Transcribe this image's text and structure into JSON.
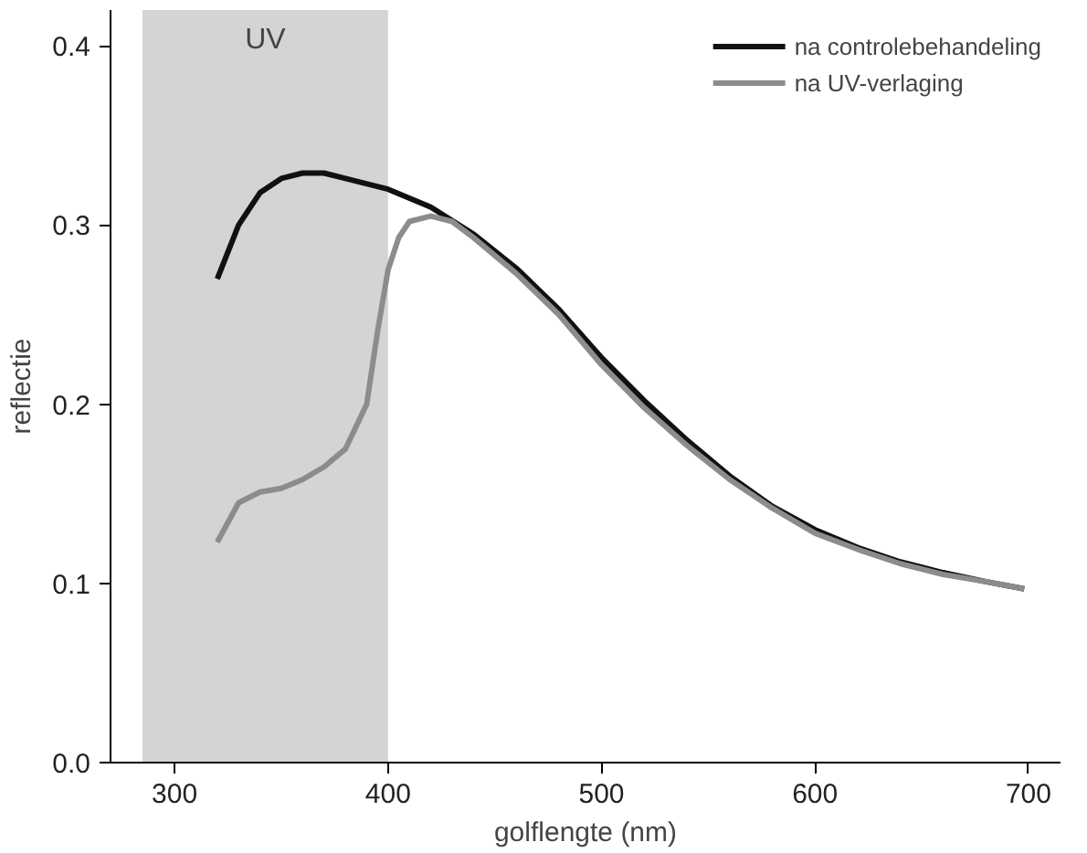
{
  "chart_data": {
    "type": "line",
    "xlabel": "golflengte (nm)",
    "ylabel": "reflectie",
    "xlim": [
      270,
      715
    ],
    "ylim": [
      0,
      0.42
    ],
    "xticks": [
      300,
      400,
      500,
      600,
      700
    ],
    "yticks": [
      {
        "value": 0,
        "label": "0.0"
      },
      0.1,
      0.2,
      0.3,
      0.4
    ],
    "grid": false,
    "legend": "top right",
    "marker": "none",
    "line_style": "solid",
    "bands": [
      {
        "axis": "x",
        "from": 285,
        "to": 400,
        "label": "UV",
        "color": "#d4d4d6"
      }
    ],
    "series": [
      {
        "name": "na controlebehandeling",
        "color": "#111111",
        "x": [
          320,
          330,
          340,
          350,
          360,
          370,
          380,
          400,
          420,
          440,
          460,
          480,
          500,
          520,
          540,
          560,
          580,
          600,
          620,
          640,
          660,
          680,
          698
        ],
        "values": [
          0.27,
          0.3,
          0.318,
          0.326,
          0.329,
          0.329,
          0.326,
          0.32,
          0.31,
          0.295,
          0.276,
          0.253,
          0.226,
          0.202,
          0.18,
          0.16,
          0.143,
          0.13,
          0.12,
          0.112,
          0.106,
          0.101,
          0.097
        ]
      },
      {
        "name": "na UV-verlaging",
        "color": "#8c8c8c",
        "x": [
          320,
          330,
          340,
          350,
          360,
          370,
          380,
          390,
          395,
          400,
          405,
          410,
          420,
          430,
          440,
          460,
          480,
          500,
          520,
          540,
          560,
          580,
          600,
          620,
          640,
          660,
          680,
          698
        ],
        "values": [
          0.123,
          0.145,
          0.151,
          0.153,
          0.158,
          0.165,
          0.175,
          0.2,
          0.24,
          0.275,
          0.293,
          0.302,
          0.305,
          0.302,
          0.293,
          0.273,
          0.25,
          0.222,
          0.198,
          0.177,
          0.158,
          0.142,
          0.128,
          0.119,
          0.111,
          0.105,
          0.101,
          0.097
        ]
      }
    ]
  }
}
